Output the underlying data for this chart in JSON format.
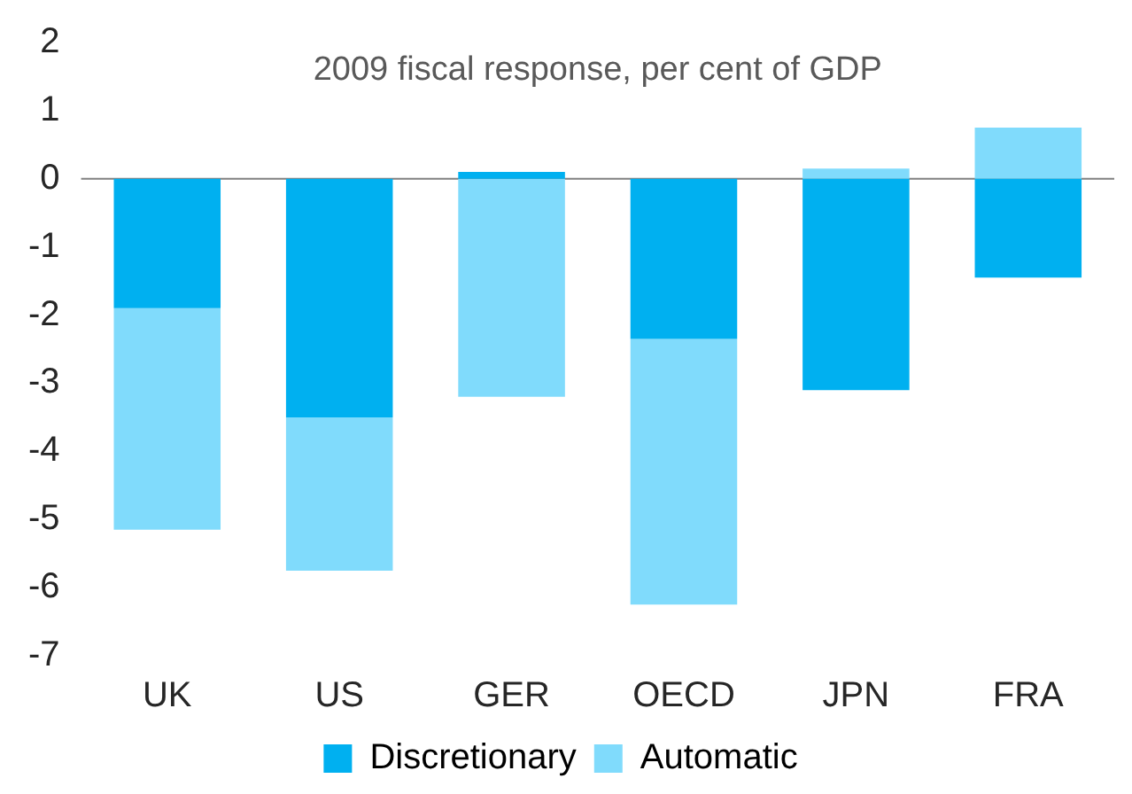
{
  "chart_data": {
    "type": "bar",
    "title": "2009 fiscal response, per cent of GDP",
    "categories": [
      "UK",
      "US",
      "GER",
      "OECD",
      "JPN",
      "FRA"
    ],
    "stacked": true,
    "series": [
      {
        "name": "Discretionary",
        "color": "#00b0f0",
        "values": [
          -1.9,
          -3.5,
          0.1,
          -2.35,
          -3.1,
          -1.45
        ]
      },
      {
        "name": "Automatic",
        "color": "#80dbfc",
        "values": [
          -3.25,
          -2.25,
          -3.2,
          -3.9,
          0.15,
          0.75
        ]
      }
    ],
    "ylim": [
      -7,
      2
    ],
    "yticks": [
      -7,
      -6,
      -5,
      -4,
      -3,
      -2,
      -1,
      0,
      1,
      2
    ],
    "grid": false,
    "legend": "bottom",
    "ref_lines": [
      {
        "axis": "y",
        "value": 0,
        "color": "#808080"
      }
    ]
  }
}
